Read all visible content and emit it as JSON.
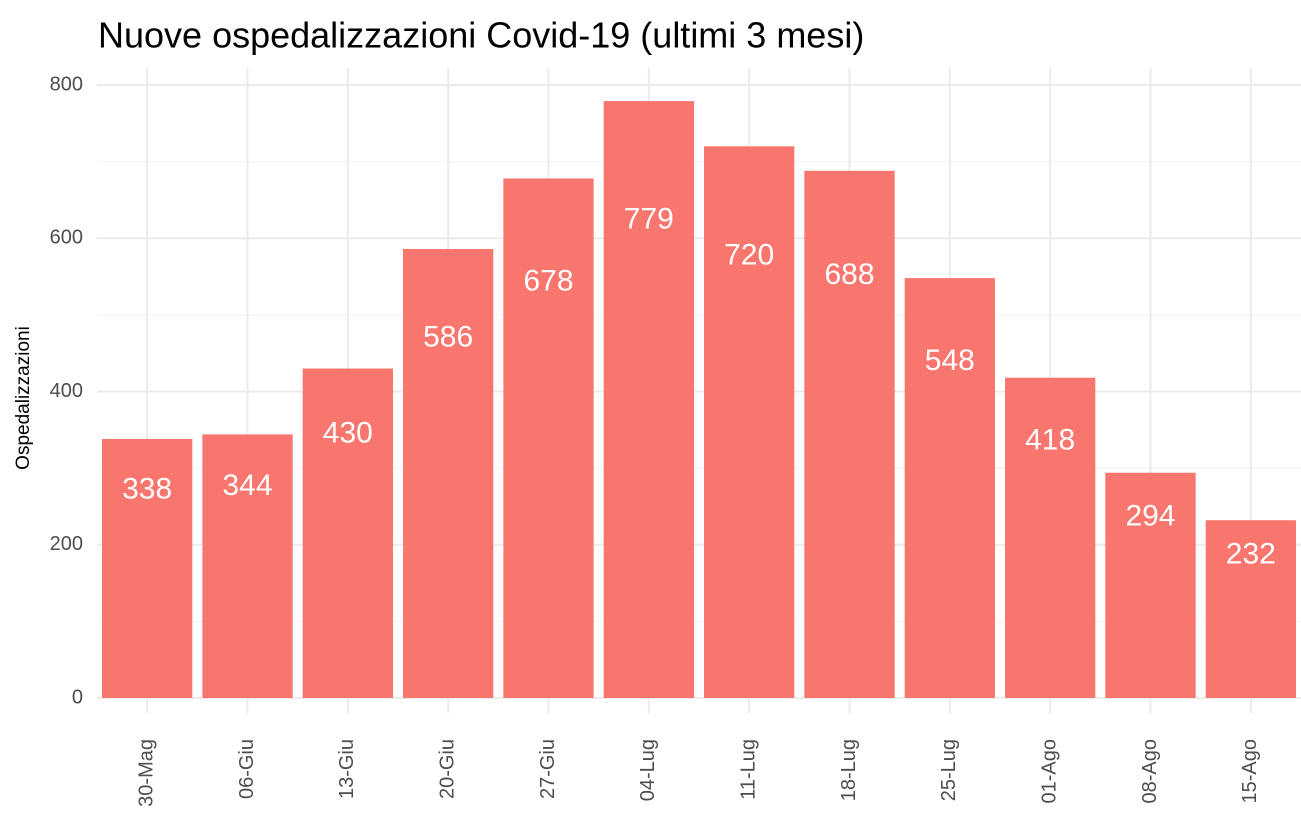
{
  "chart_data": {
    "type": "bar",
    "title": "Nuove ospedalizzazioni Covid-19 (ultimi 3 mesi)",
    "y_label": "Ospedalizzazioni",
    "categories": [
      "30-Mag",
      "06-Giu",
      "13-Giu",
      "20-Giu",
      "27-Giu",
      "04-Lug",
      "11-Lug",
      "18-Lug",
      "25-Lug",
      "01-Ago",
      "08-Ago",
      "15-Ago"
    ],
    "values": [
      338,
      344,
      430,
      586,
      678,
      779,
      720,
      688,
      548,
      418,
      294,
      232
    ],
    "color": "#f8766d",
    "ylim": [
      0,
      800
    ],
    "yticks": [
      0,
      200,
      400,
      600,
      800
    ],
    "grid": true
  }
}
